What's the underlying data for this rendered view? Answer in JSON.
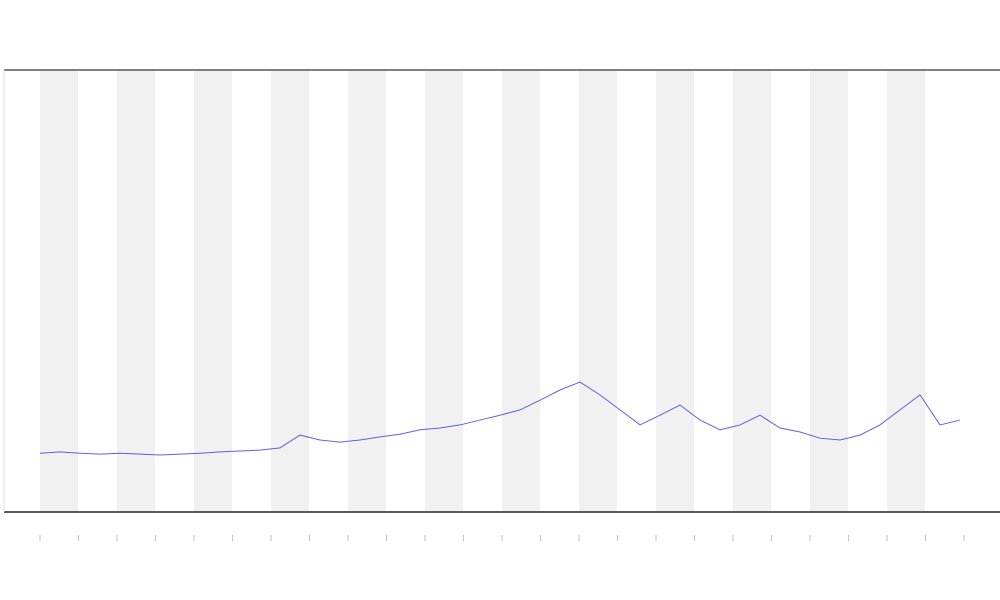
{
  "chart_data": {
    "type": "line",
    "x": [
      0,
      1,
      2,
      3,
      4,
      5,
      6,
      7,
      8,
      9,
      10,
      11,
      12,
      13,
      14,
      15,
      16,
      17,
      18,
      19,
      20,
      21,
      22,
      23,
      24,
      25,
      26,
      27,
      28,
      29,
      30,
      31,
      32,
      33,
      34,
      35,
      36,
      37,
      38,
      39,
      40,
      41,
      42,
      43,
      44,
      45,
      46
    ],
    "series": [
      {
        "color": "#3a3adf",
        "values": [
          13.3,
          13.6,
          13.3,
          13.1,
          13.3,
          13.1,
          12.9,
          13.1,
          13.3,
          13.6,
          13.8,
          14,
          14.5,
          17.4,
          16.3,
          15.8,
          16.3,
          17,
          17.6,
          18.6,
          19,
          19.7,
          20.8,
          21.9,
          23.1,
          25.3,
          27.6,
          29.4,
          26.5,
          23.1,
          19.7,
          21.9,
          24.2,
          20.8,
          18.6,
          19.7,
          21.9,
          19,
          18.1,
          16.7,
          16.3,
          17.4,
          19.7,
          23.1,
          26.5,
          19.7,
          20.8
        ]
      }
    ],
    "xlim": [
      -2,
      48
    ],
    "ylim": [
      0,
      100
    ]
  }
}
